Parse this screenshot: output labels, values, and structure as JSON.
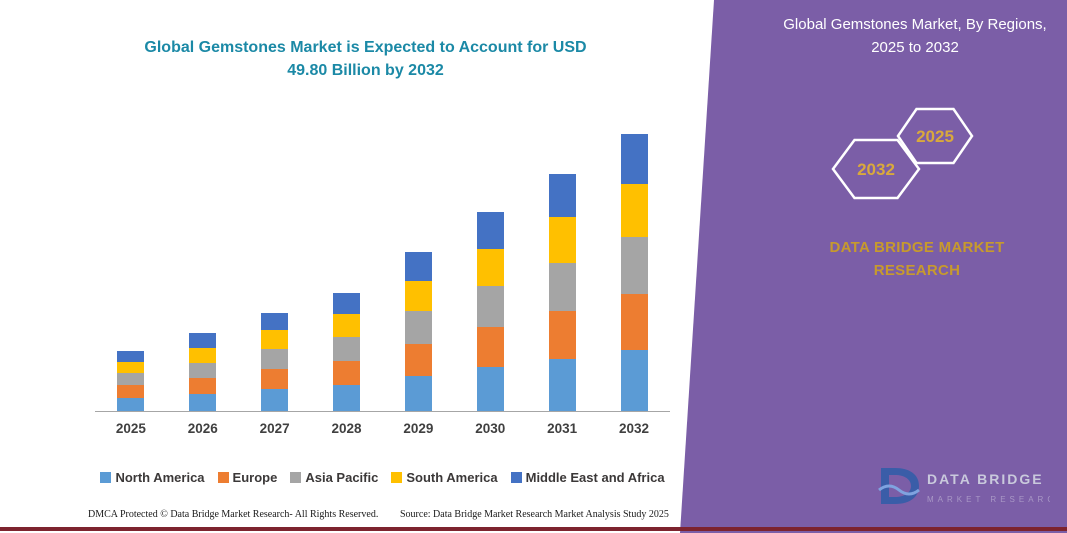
{
  "main_title": "Global Gemstones Market is Expected to Account for USD 49.80 Billion by 2032",
  "panel": {
    "title": "Global Gemstones Market, By Regions, 2025 to 2032",
    "hexagon_left": "2032",
    "hexagon_right": "2025",
    "brand": "DATA BRIDGE MARKET RESEARCH",
    "logo_top": "DATA BRIDGE",
    "logo_bottom": "MARKET RESEARCH",
    "panel_color": "#7B5EA7",
    "gold_color": "#C79A2D"
  },
  "footer": {
    "dmca": "DMCA Protected © Data Bridge Market Research-  All Rights Reserved.",
    "source": "Source: Data Bridge Market Research  Market Analysis Study 2025"
  },
  "chart_data": {
    "type": "bar",
    "stacked": true,
    "title": "Global Gemstones Market is Expected to Account for USD 49.80 Billion by 2032",
    "unit": "USD Billion",
    "categories": [
      "2025",
      "2026",
      "2027",
      "2028",
      "2029",
      "2030",
      "2031",
      "2032"
    ],
    "series": [
      {
        "name": "North America",
        "color": "#5B9BD5",
        "values": [
          2.4,
          3.1,
          3.9,
          4.7,
          6.3,
          7.9,
          9.4,
          11.0
        ]
      },
      {
        "name": "Europe",
        "color": "#ED7D31",
        "values": [
          2.2,
          2.8,
          3.6,
          4.3,
          5.8,
          7.2,
          8.6,
          10.1
        ]
      },
      {
        "name": "Asia Pacific",
        "color": "#A5A5A5",
        "values": [
          2.2,
          2.8,
          3.6,
          4.3,
          5.8,
          7.3,
          8.7,
          10.2
        ]
      },
      {
        "name": "South America",
        "color": "#FFC000",
        "values": [
          2.0,
          2.7,
          3.4,
          4.1,
          5.4,
          6.8,
          8.1,
          9.5
        ]
      },
      {
        "name": "Middle East and Africa",
        "color": "#4472C4",
        "values": [
          2.0,
          2.6,
          3.2,
          3.9,
          5.2,
          6.5,
          7.8,
          9.0
        ]
      }
    ],
    "totals": [
      10.8,
      14.0,
      17.7,
      21.3,
      28.5,
      35.7,
      42.6,
      49.8
    ],
    "ylim": [
      0,
      55
    ],
    "grid": false,
    "legend_position": "bottom",
    "xlabel": "",
    "ylabel": ""
  }
}
